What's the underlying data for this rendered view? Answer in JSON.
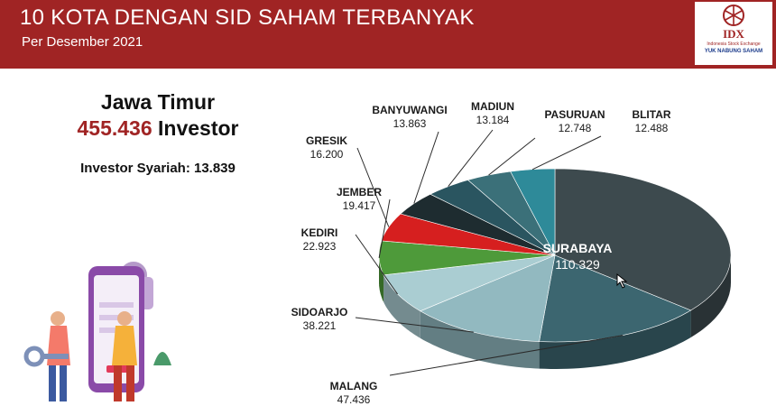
{
  "header": {
    "title": "10 KOTA DENGAN SID SAHAM TERBANYAK",
    "subtitle": "Per Desember 2021",
    "logo_text": "IDX",
    "logo_small": "Indonesia Stock Exchange",
    "logo_small2": "YUK NABUNG SAHAM"
  },
  "summary": {
    "region": "Jawa Timur",
    "total_value": "455.436",
    "total_unit": "Investor",
    "syariah": "Investor Syariah: 13.839"
  },
  "colors": {
    "header_bg": "#a02424",
    "accent": "#a02424"
  },
  "chart_data": {
    "type": "pie",
    "title": "",
    "categories": [
      "SURABAYA",
      "MALANG",
      "SIDOARJO",
      "KEDIRI",
      "JEMBER",
      "GRESIK",
      "BANYUWANGI",
      "MADIUN",
      "PASURUAN",
      "BLITAR"
    ],
    "values": [
      110329,
      47436,
      38221,
      22923,
      19417,
      16200,
      13863,
      13184,
      12748,
      12488
    ],
    "value_labels": [
      "110.329",
      "47.436",
      "38.221",
      "22.923",
      "19.417",
      "16.200",
      "13.863",
      "13.184",
      "12.748",
      "12.488"
    ],
    "colors": [
      "#3d4a4e",
      "#3c6670",
      "#92b9c0",
      "#aacdd2",
      "#4e9a3a",
      "#d61f1f",
      "#1e2c30",
      "#2a5560",
      "#3b7079",
      "#2e8a99"
    ],
    "legend": "none",
    "style": "3d-pie"
  }
}
